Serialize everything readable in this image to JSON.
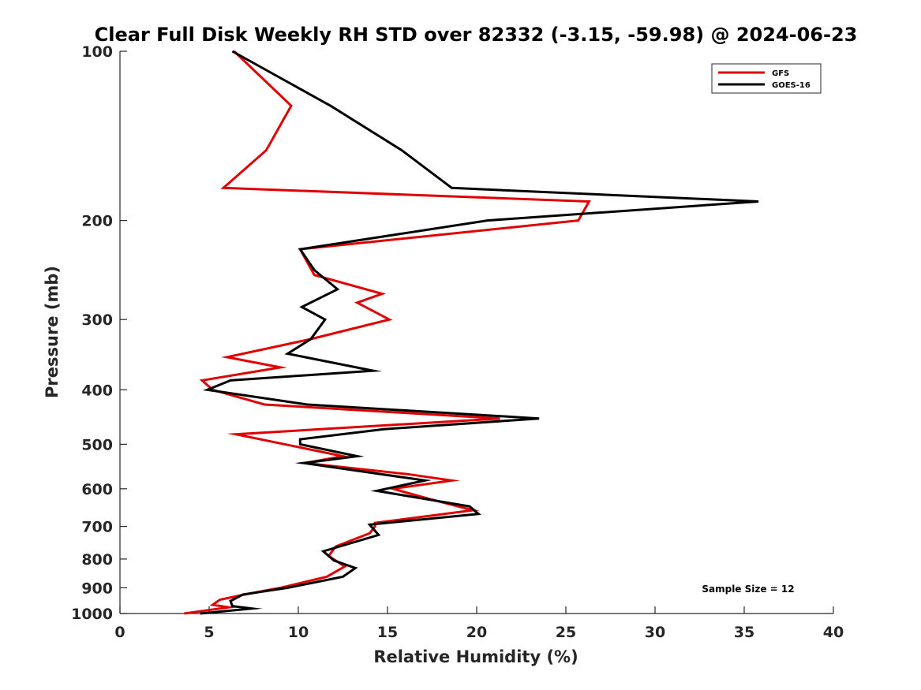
{
  "chart_data": {
    "type": "line",
    "title": "Clear Full Disk Weekly RH STD over 82332 (-3.15, -59.98) @ 2024-06-23",
    "xlabel": "Relative Humidity (%)",
    "ylabel": "Pressure (mb)",
    "xlim": [
      0,
      40
    ],
    "ylim": [
      100,
      1000
    ],
    "yscale": "log",
    "y_reversed": true,
    "xticks": [
      "0",
      "5",
      "10",
      "15",
      "20",
      "25",
      "30",
      "35",
      "40"
    ],
    "yticks": [
      "100",
      "200",
      "300",
      "400",
      "500",
      "600",
      "700",
      "800",
      "900",
      "1000"
    ],
    "grid": false,
    "legend_position": "top-right",
    "annotation": "Sample Size = 12",
    "series": [
      {
        "name": "GFS",
        "color": "#e00000",
        "points": [
          [
            6.4,
            100
          ],
          [
            9.6,
            125
          ],
          [
            8.2,
            150
          ],
          [
            5.8,
            175
          ],
          [
            26.3,
            185
          ],
          [
            25.7,
            200
          ],
          [
            10.1,
            225
          ],
          [
            10.9,
            250
          ],
          [
            14.7,
            270
          ],
          [
            13.3,
            280
          ],
          [
            15.1,
            300
          ],
          [
            10.7,
            325
          ],
          [
            6.0,
            350
          ],
          [
            9.0,
            365
          ],
          [
            4.6,
            385
          ],
          [
            5.2,
            400
          ],
          [
            8.1,
            425
          ],
          [
            21.3,
            450
          ],
          [
            6.5,
            480
          ],
          [
            12.5,
            525
          ],
          [
            10.4,
            540
          ],
          [
            16.1,
            565
          ],
          [
            18.6,
            580
          ],
          [
            15.3,
            600
          ],
          [
            17.3,
            625
          ],
          [
            19.8,
            655
          ],
          [
            14.3,
            690
          ],
          [
            14.3,
            700
          ],
          [
            14.0,
            720
          ],
          [
            12.1,
            760
          ],
          [
            11.7,
            790
          ],
          [
            12.6,
            825
          ],
          [
            11.6,
            860
          ],
          [
            9.0,
            900
          ],
          [
            7.0,
            925
          ],
          [
            5.6,
            945
          ],
          [
            5.2,
            965
          ],
          [
            6.1,
            975
          ],
          [
            3.6,
            1000
          ]
        ]
      },
      {
        "name": "GOES-16",
        "color": "#000000",
        "points": [
          [
            6.3,
            100
          ],
          [
            11.8,
            125
          ],
          [
            15.8,
            150
          ],
          [
            18.6,
            175
          ],
          [
            35.8,
            185
          ],
          [
            20.6,
            200
          ],
          [
            10.1,
            225
          ],
          [
            10.9,
            245
          ],
          [
            12.2,
            265
          ],
          [
            10.2,
            285
          ],
          [
            11.5,
            300
          ],
          [
            10.7,
            325
          ],
          [
            9.4,
            345
          ],
          [
            14.2,
            370
          ],
          [
            6.2,
            385
          ],
          [
            4.9,
            400
          ],
          [
            10.5,
            425
          ],
          [
            23.5,
            450
          ],
          [
            14.8,
            470
          ],
          [
            10.1,
            490
          ],
          [
            10.1,
            500
          ],
          [
            13.3,
            525
          ],
          [
            10.3,
            540
          ],
          [
            17.1,
            580
          ],
          [
            14.4,
            605
          ],
          [
            19.6,
            645
          ],
          [
            20.1,
            665
          ],
          [
            14.0,
            695
          ],
          [
            14.5,
            725
          ],
          [
            11.4,
            775
          ],
          [
            12.0,
            805
          ],
          [
            13.2,
            830
          ],
          [
            12.5,
            860
          ],
          [
            9.4,
            900
          ],
          [
            6.9,
            925
          ],
          [
            6.2,
            950
          ],
          [
            6.3,
            970
          ],
          [
            7.4,
            980
          ],
          [
            4.5,
            1000
          ]
        ]
      }
    ]
  }
}
